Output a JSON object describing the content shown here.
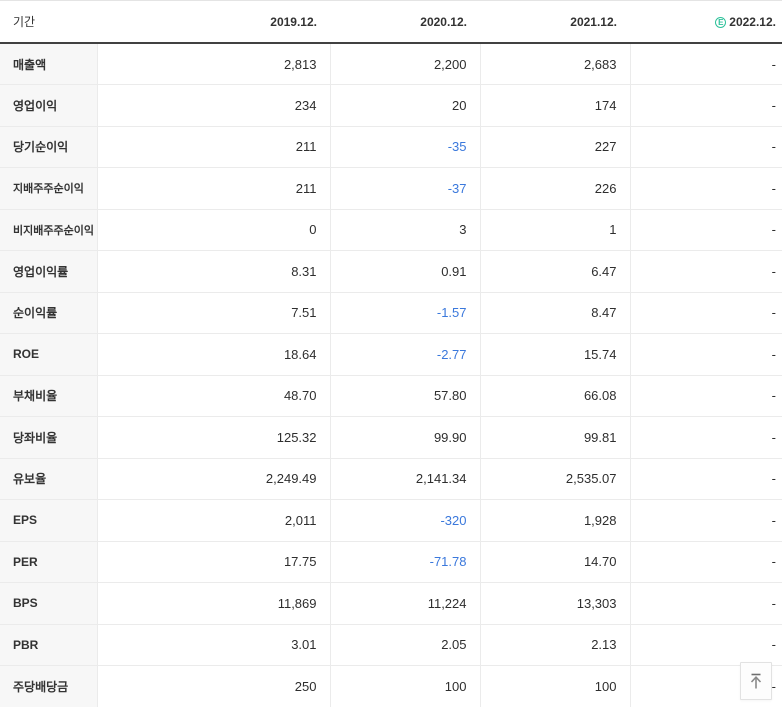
{
  "table": {
    "header": {
      "period_label": "기간",
      "columns": [
        "2019.12.",
        "2020.12.",
        "2021.12.",
        "2022.12."
      ],
      "estimate_badge": "E"
    },
    "rows": [
      {
        "label": "매출액",
        "sub": false,
        "values": [
          "2,813",
          "2,200",
          "2,683",
          "-"
        ]
      },
      {
        "label": "영업이익",
        "sub": false,
        "values": [
          "234",
          "20",
          "174",
          "-"
        ]
      },
      {
        "label": "당기순이익",
        "sub": false,
        "values": [
          "211",
          "-35",
          "227",
          "-"
        ]
      },
      {
        "label": "지배주주순이익",
        "sub": true,
        "values": [
          "211",
          "-37",
          "226",
          "-"
        ]
      },
      {
        "label": "비지배주주순이익",
        "sub": true,
        "values": [
          "0",
          "3",
          "1",
          "-"
        ]
      },
      {
        "label": "영업이익률",
        "sub": false,
        "values": [
          "8.31",
          "0.91",
          "6.47",
          "-"
        ]
      },
      {
        "label": "순이익률",
        "sub": false,
        "values": [
          "7.51",
          "-1.57",
          "8.47",
          "-"
        ]
      },
      {
        "label": "ROE",
        "sub": false,
        "values": [
          "18.64",
          "-2.77",
          "15.74",
          "-"
        ]
      },
      {
        "label": "부채비율",
        "sub": false,
        "values": [
          "48.70",
          "57.80",
          "66.08",
          "-"
        ]
      },
      {
        "label": "당좌비율",
        "sub": false,
        "values": [
          "125.32",
          "99.90",
          "99.81",
          "-"
        ]
      },
      {
        "label": "유보율",
        "sub": false,
        "values": [
          "2,249.49",
          "2,141.34",
          "2,535.07",
          "-"
        ]
      },
      {
        "label": "EPS",
        "sub": false,
        "values": [
          "2,011",
          "-320",
          "1,928",
          "-"
        ]
      },
      {
        "label": "PER",
        "sub": false,
        "values": [
          "17.75",
          "-71.78",
          "14.70",
          "-"
        ]
      },
      {
        "label": "BPS",
        "sub": false,
        "values": [
          "11,869",
          "11,224",
          "13,303",
          "-"
        ]
      },
      {
        "label": "PBR",
        "sub": false,
        "values": [
          "3.01",
          "2.05",
          "2.13",
          "-"
        ]
      },
      {
        "label": "주당배당금",
        "sub": false,
        "values": [
          "250",
          "100",
          "100",
          "-"
        ]
      }
    ]
  },
  "colors": {
    "negative_value": "#3a78dc",
    "estimate_badge": "#2fc29b",
    "header_underline": "#414141",
    "row_border": "#ebebeb",
    "label_background": "#f7f7f7"
  },
  "scroll_top_button": {
    "icon": "arrow-up-to-top"
  }
}
